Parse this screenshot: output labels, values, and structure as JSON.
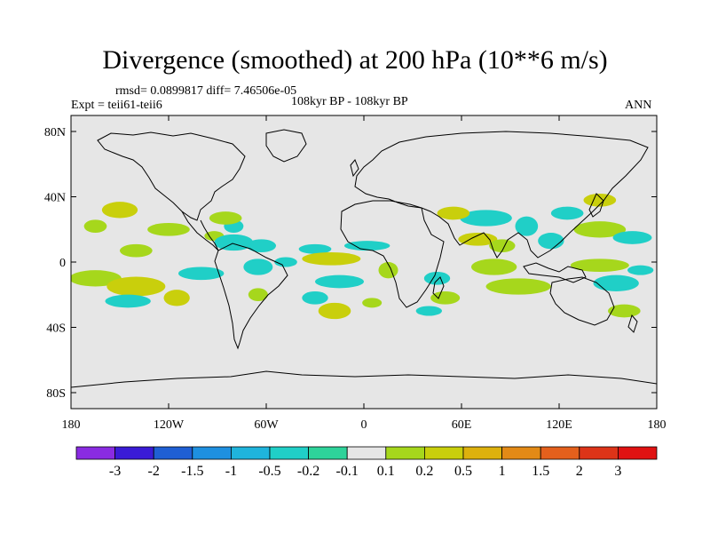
{
  "chart_data": {
    "type": "heatmap",
    "title": "Divergence (smoothed) at 200 hPa (10**6 m/s)",
    "stats": "rmsd= 0.0899817 diff= 7.46506e-05",
    "experiment": "Expt = teii61-teii6",
    "period": "108kyr BP - 108kyr BP",
    "season": "ANN",
    "x_ticks": [
      "180",
      "120W",
      "60W",
      "0",
      "60E",
      "120E",
      "180"
    ],
    "y_ticks": [
      "80N",
      "40N",
      "0",
      "40S",
      "80S"
    ],
    "xlim": [
      -180,
      180
    ],
    "ylim": [
      -90,
      90
    ],
    "levels": [
      "-3",
      "-2",
      "-1.5",
      "-1",
      "-0.5",
      "-0.2",
      "-0.1",
      "0.1",
      "0.2",
      "0.5",
      "1",
      "1.5",
      "2",
      "3"
    ],
    "colors": [
      "#8A2BE2",
      "#3A1BD6",
      "#1F5FD4",
      "#1E90E0",
      "#1FB4DC",
      "#20CFC7",
      "#2ED39A",
      "#E6E6E6",
      "#A6D71C",
      "#C9CF0C",
      "#DDB10D",
      "#E38A16",
      "#E4601C",
      "#DD3418",
      "#E01212"
    ],
    "regions": [
      {
        "lon": -150,
        "lat": 32,
        "rlon": 11,
        "rlat": 5,
        "level": 9
      },
      {
        "lon": -165,
        "lat": 22,
        "rlon": 7,
        "rlat": 4,
        "level": 8
      },
      {
        "lon": -120,
        "lat": 20,
        "rlon": 13,
        "rlat": 4,
        "level": 8
      },
      {
        "lon": -140,
        "lat": 7,
        "rlon": 10,
        "rlat": 4,
        "level": 8
      },
      {
        "lon": -165,
        "lat": -10,
        "rlon": 16,
        "rlat": 5,
        "level": 8
      },
      {
        "lon": -140,
        "lat": -15,
        "rlon": 18,
        "rlat": 6,
        "level": 9
      },
      {
        "lon": -145,
        "lat": -24,
        "rlon": 14,
        "rlat": 4,
        "level": 5
      },
      {
        "lon": -115,
        "lat": -22,
        "rlon": 8,
        "rlat": 5,
        "level": 9
      },
      {
        "lon": -100,
        "lat": -7,
        "rlon": 14,
        "rlat": 4,
        "level": 5
      },
      {
        "lon": -92,
        "lat": 16,
        "rlon": 6,
        "rlat": 3,
        "level": 8
      },
      {
        "lon": -80,
        "lat": 12,
        "rlon": 12,
        "rlat": 5,
        "level": 5
      },
      {
        "lon": -80,
        "lat": 22,
        "rlon": 6,
        "rlat": 4,
        "level": 5
      },
      {
        "lon": -63,
        "lat": 10,
        "rlon": 9,
        "rlat": 4,
        "level": 5
      },
      {
        "lon": -85,
        "lat": 27,
        "rlon": 10,
        "rlat": 4,
        "level": 8
      },
      {
        "lon": -65,
        "lat": -3,
        "rlon": 9,
        "rlat": 5,
        "level": 5
      },
      {
        "lon": -65,
        "lat": -20,
        "rlon": 6,
        "rlat": 4,
        "level": 8
      },
      {
        "lon": -48,
        "lat": 0,
        "rlon": 7,
        "rlat": 3,
        "level": 5
      },
      {
        "lon": -30,
        "lat": 8,
        "rlon": 10,
        "rlat": 3,
        "level": 5
      },
      {
        "lon": -20,
        "lat": 2,
        "rlon": 18,
        "rlat": 4,
        "level": 9
      },
      {
        "lon": 2,
        "lat": 10,
        "rlon": 14,
        "rlat": 3,
        "level": 5
      },
      {
        "lon": -15,
        "lat": -12,
        "rlon": 15,
        "rlat": 4,
        "level": 5
      },
      {
        "lon": -30,
        "lat": -22,
        "rlon": 8,
        "rlat": 4,
        "level": 5
      },
      {
        "lon": -18,
        "lat": -30,
        "rlon": 10,
        "rlat": 5,
        "level": 9
      },
      {
        "lon": 5,
        "lat": -25,
        "rlon": 6,
        "rlat": 3,
        "level": 8
      },
      {
        "lon": 15,
        "lat": -5,
        "rlon": 6,
        "rlat": 5,
        "level": 8
      },
      {
        "lon": 45,
        "lat": -10,
        "rlon": 8,
        "rlat": 4,
        "level": 5
      },
      {
        "lon": 50,
        "lat": -22,
        "rlon": 9,
        "rlat": 4,
        "level": 8
      },
      {
        "lon": 40,
        "lat": -30,
        "rlon": 8,
        "rlat": 3,
        "level": 5
      },
      {
        "lon": 75,
        "lat": 27,
        "rlon": 16,
        "rlat": 5,
        "level": 5
      },
      {
        "lon": 55,
        "lat": 30,
        "rlon": 10,
        "rlat": 4,
        "level": 9
      },
      {
        "lon": 70,
        "lat": 14,
        "rlon": 12,
        "rlat": 4,
        "level": 9
      },
      {
        "lon": 85,
        "lat": 10,
        "rlon": 8,
        "rlat": 4,
        "level": 8
      },
      {
        "lon": 80,
        "lat": -3,
        "rlon": 14,
        "rlat": 5,
        "level": 8
      },
      {
        "lon": 95,
        "lat": -15,
        "rlon": 20,
        "rlat": 5,
        "level": 8
      },
      {
        "lon": 100,
        "lat": 22,
        "rlon": 7,
        "rlat": 6,
        "level": 5
      },
      {
        "lon": 115,
        "lat": 13,
        "rlon": 8,
        "rlat": 5,
        "level": 5
      },
      {
        "lon": 125,
        "lat": 30,
        "rlon": 10,
        "rlat": 4,
        "level": 5
      },
      {
        "lon": 145,
        "lat": 38,
        "rlon": 10,
        "rlat": 4,
        "level": 9
      },
      {
        "lon": 145,
        "lat": 20,
        "rlon": 16,
        "rlat": 5,
        "level": 8
      },
      {
        "lon": 165,
        "lat": 15,
        "rlon": 12,
        "rlat": 4,
        "level": 5
      },
      {
        "lon": 145,
        "lat": -2,
        "rlon": 18,
        "rlat": 4,
        "level": 8
      },
      {
        "lon": 155,
        "lat": -13,
        "rlon": 14,
        "rlat": 5,
        "level": 5
      },
      {
        "lon": 170,
        "lat": -5,
        "rlon": 8,
        "rlat": 3,
        "level": 5
      },
      {
        "lon": 160,
        "lat": -30,
        "rlon": 10,
        "rlat": 4,
        "level": 8
      }
    ]
  }
}
